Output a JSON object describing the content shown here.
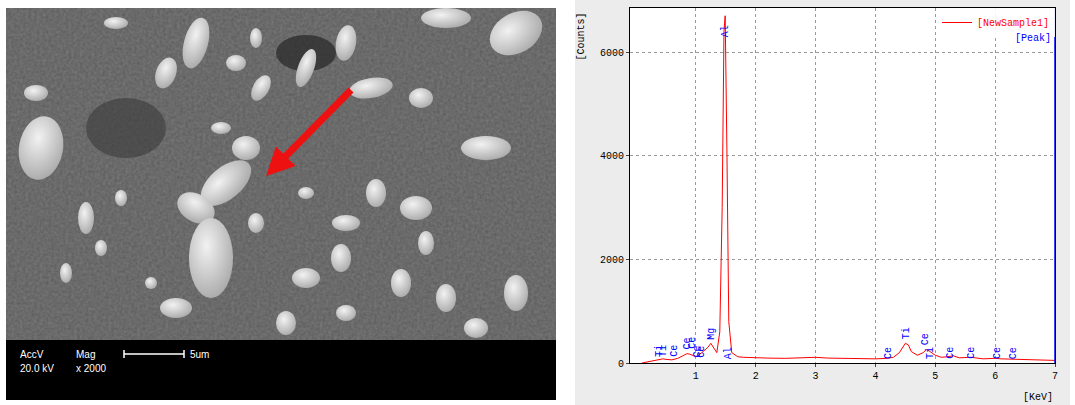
{
  "image": {
    "accv_label": "AccV",
    "accv": "20.0 kV",
    "mag_label": "Mag",
    "mag": "x 2000",
    "scale": "5um"
  },
  "chart_data": {
    "type": "line",
    "x_label": "[KeV]",
    "y_label": "[Counts]",
    "series": [
      {
        "name": "[NewSample1]",
        "color": "#ff0000",
        "x": [
          0.1,
          0.2,
          0.3,
          0.4,
          0.45,
          0.5,
          0.6,
          0.7,
          0.8,
          0.85,
          0.9,
          1.0,
          1.1,
          1.2,
          1.25,
          1.3,
          1.35,
          1.4,
          1.44,
          1.47,
          1.49,
          1.52,
          1.55,
          1.6,
          1.7,
          1.8,
          2.0,
          2.2,
          2.5,
          2.8,
          3.0,
          3.2,
          3.5,
          3.8,
          4.0,
          4.2,
          4.3,
          4.4,
          4.5,
          4.55,
          4.6,
          4.7,
          4.8,
          4.85,
          4.9,
          5.0,
          5.1,
          5.2,
          5.3,
          5.4,
          5.6,
          5.8,
          6.0,
          6.1,
          6.4,
          6.7,
          7.0
        ],
        "values": [
          0,
          20,
          40,
          60,
          80,
          70,
          60,
          90,
          150,
          180,
          170,
          120,
          200,
          300,
          380,
          280,
          200,
          600,
          3000,
          6400,
          6700,
          4000,
          800,
          200,
          120,
          110,
          100,
          95,
          90,
          100,
          110,
          95,
          85,
          80,
          80,
          90,
          110,
          200,
          380,
          350,
          220,
          150,
          200,
          260,
          230,
          150,
          110,
          120,
          140,
          100,
          110,
          80,
          90,
          80,
          70,
          60,
          50
        ]
      }
    ],
    "peak_name": "[Peak]",
    "peak_color": "#0000ff",
    "cursor": 7,
    "annotations": [
      {
        "x": 0.4,
        "y": 80,
        "text": "Ti"
      },
      {
        "x": 0.47,
        "y": 80,
        "text": "Ti"
      },
      {
        "x": 0.65,
        "y": 80,
        "text": "Ce"
      },
      {
        "x": 0.86,
        "y": 230,
        "text": "Ce"
      },
      {
        "x": 0.93,
        "y": 230,
        "text": "Ce"
      },
      {
        "x": 1.03,
        "y": 60,
        "text": "Ce"
      },
      {
        "x": 1.1,
        "y": 60,
        "text": "Ce"
      },
      {
        "x": 1.26,
        "y": 420,
        "text": "Mg"
      },
      {
        "x": 1.49,
        "y": 6250,
        "text": "Al"
      },
      {
        "x": 1.56,
        "y": 40,
        "text": "Al"
      },
      {
        "x": 4.23,
        "y": 40,
        "text": "Ce"
      },
      {
        "x": 4.51,
        "y": 420,
        "text": "Ti"
      },
      {
        "x": 4.84,
        "y": 300,
        "text": "Ce"
      },
      {
        "x": 4.93,
        "y": 40,
        "text": "Ti"
      },
      {
        "x": 5.26,
        "y": 40,
        "text": "Ce"
      },
      {
        "x": 5.61,
        "y": 40,
        "text": "Ce"
      },
      {
        "x": 6.05,
        "y": 40,
        "text": "Ce"
      },
      {
        "x": 6.32,
        "y": 40,
        "text": "Ce"
      }
    ],
    "xlim": [
      -0.1,
      7
    ],
    "xticks": [
      1,
      2,
      3,
      4,
      5,
      6,
      7
    ],
    "ylim": [
      0,
      6850
    ],
    "yticks": [
      0,
      2000,
      4000,
      6000
    ],
    "grid": true,
    "legend": "upper right"
  }
}
